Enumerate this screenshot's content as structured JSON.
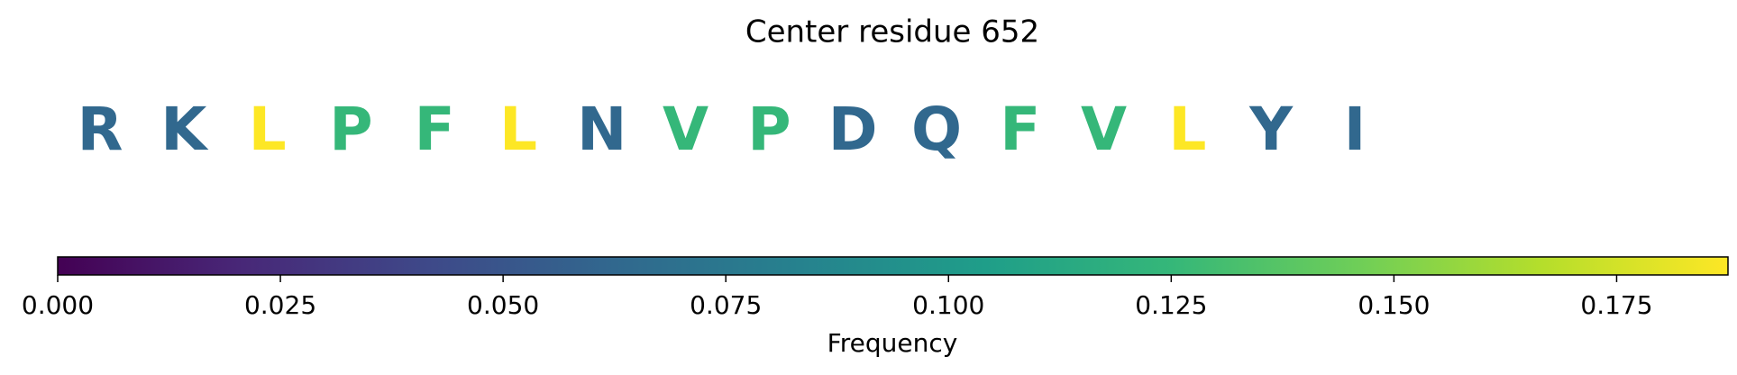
{
  "chart_data": {
    "type": "colored-sequence",
    "title": "Center residue 652",
    "categories": [
      "R",
      "K",
      "L",
      "P",
      "F",
      "L",
      "N",
      "V",
      "P",
      "D",
      "Q",
      "F",
      "V",
      "L",
      "Y",
      "I"
    ],
    "values": [
      0.0625,
      0.0625,
      0.1875,
      0.125,
      0.125,
      0.1875,
      0.0625,
      0.125,
      0.125,
      0.0625,
      0.0625,
      0.125,
      0.125,
      0.1875,
      0.0625,
      0.0625
    ],
    "colormap": "viridis",
    "xlabel": "Frequency",
    "xlim": [
      0,
      0.1875
    ],
    "xticks": [
      {
        "value": 0,
        "label": "0.000"
      },
      {
        "value": 0.025,
        "label": "0.025"
      },
      {
        "value": 0.05,
        "label": "0.050"
      },
      {
        "value": 0.075,
        "label": "0.075"
      },
      {
        "value": 0.1,
        "label": "0.100"
      },
      {
        "value": 0.125,
        "label": "0.125"
      },
      {
        "value": 0.15,
        "label": "0.150"
      },
      {
        "value": 0.175,
        "label": "0.175"
      }
    ]
  }
}
